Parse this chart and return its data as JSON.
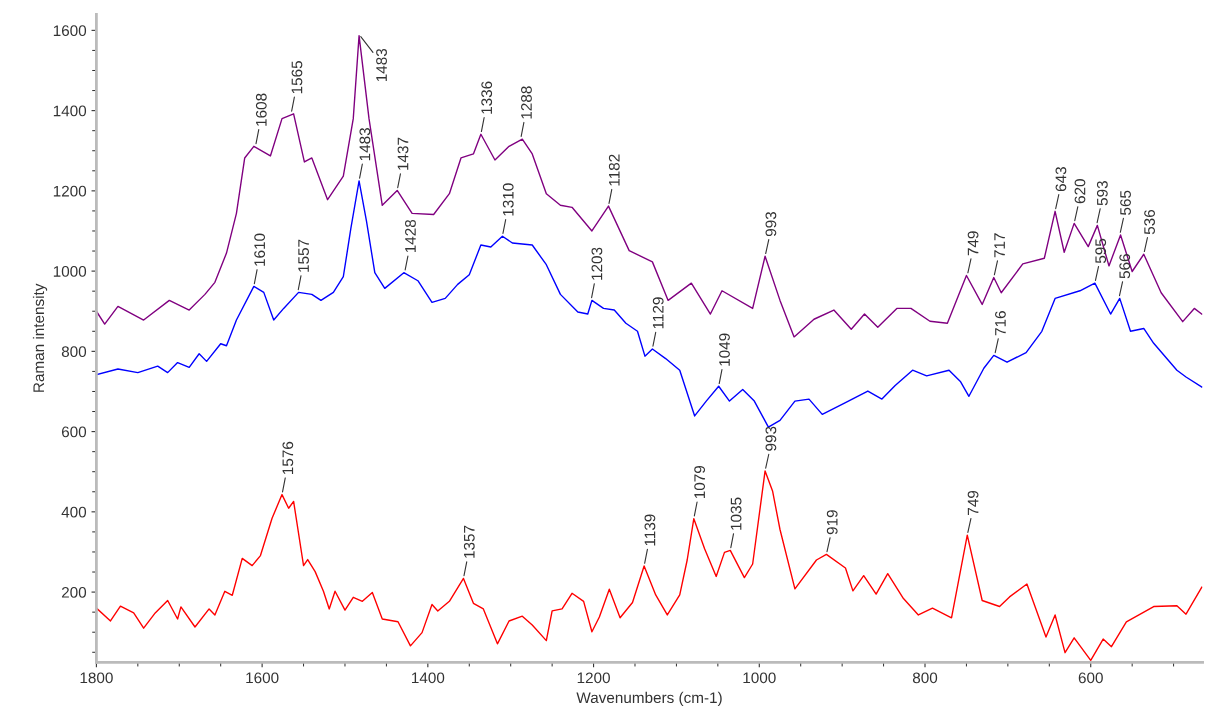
{
  "chart_data": {
    "type": "line",
    "xlabel": "Wavenumbers (cm-1)",
    "ylabel": "Raman intensity",
    "xlim": [
      1800,
      465
    ],
    "ylim": [
      25,
      1640
    ],
    "xticks": [
      1800,
      1600,
      1400,
      1200,
      1000,
      800,
      600
    ],
    "yticks": [
      200,
      400,
      600,
      800,
      1000,
      1200,
      1400,
      1600
    ],
    "grid": false,
    "legend": false,
    "line_style": "solid",
    "marker": "none",
    "series": [
      {
        "color": "#800080",
        "x": [
          1800,
          1790,
          1774,
          1743,
          1712,
          1688,
          1669,
          1657,
          1643,
          1631,
          1621,
          1610,
          1590,
          1576,
          1562,
          1549,
          1540,
          1521,
          1502,
          1490,
          1483,
          1471,
          1455,
          1437,
          1419,
          1393,
          1374,
          1360,
          1345,
          1336,
          1319,
          1302,
          1286,
          1274,
          1257,
          1240,
          1226,
          1202,
          1182,
          1157,
          1129,
          1110,
          1082,
          1059,
          1045,
          1008,
          993,
          975,
          958,
          934,
          910,
          889,
          873,
          857,
          834,
          817,
          794,
          773,
          750,
          731,
          717,
          708,
          682,
          656,
          643,
          632,
          620,
          603,
          592,
          578,
          564,
          550,
          536,
          515,
          489,
          475,
          466
        ],
        "values": [
          900,
          868,
          912,
          878,
          927,
          903,
          942,
          972,
          1045,
          1144,
          1282,
          1311,
          1287,
          1380,
          1392,
          1272,
          1282,
          1178,
          1237,
          1380,
          1587,
          1380,
          1164,
          1201,
          1144,
          1141,
          1193,
          1282,
          1292,
          1341,
          1277,
          1311,
          1329,
          1292,
          1193,
          1164,
          1159,
          1100,
          1162,
          1051,
          1023,
          927,
          970,
          893,
          951,
          907,
          1037,
          927,
          836,
          880,
          903,
          855,
          893,
          860,
          907,
          907,
          875,
          870,
          989,
          917,
          984,
          946,
          1018,
          1032,
          1149,
          1047,
          1119,
          1061,
          1114,
          1013,
          1090,
          999,
          1042,
          946,
          874,
          907,
          893
        ]
      },
      {
        "color": "#0000ff",
        "x": [
          1800,
          1774,
          1750,
          1726,
          1714,
          1702,
          1688,
          1676,
          1667,
          1650,
          1643,
          1631,
          1610,
          1598,
          1586,
          1574,
          1556,
          1540,
          1529,
          1514,
          1502,
          1493,
          1483,
          1474,
          1464,
          1452,
          1429,
          1412,
          1395,
          1379,
          1364,
          1350,
          1336,
          1324,
          1310,
          1298,
          1274,
          1257,
          1240,
          1219,
          1207,
          1202,
          1188,
          1175,
          1161,
          1147,
          1138,
          1129,
          1113,
          1096,
          1078,
          1064,
          1049,
          1036,
          1020,
          1006,
          989,
          975,
          957,
          940,
          924,
          896,
          869,
          852,
          836,
          815,
          798,
          771,
          757,
          747,
          729,
          717,
          701,
          678,
          659,
          643,
          613,
          595,
          576,
          565,
          552,
          536,
          524,
          496,
          485,
          466
        ],
        "values": [
          742,
          756,
          747,
          763,
          747,
          772,
          760,
          794,
          775,
          819,
          814,
          878,
          962,
          947,
          878,
          907,
          947,
          942,
          927,
          947,
          986,
          1105,
          1225,
          1124,
          996,
          957,
          996,
          976,
          922,
          932,
          967,
          991,
          1065,
          1060,
          1087,
          1070,
          1065,
          1016,
          942,
          898,
          893,
          927,
          907,
          903,
          870,
          850,
          788,
          806,
          782,
          753,
          639,
          676,
          713,
          676,
          705,
          676,
          611,
          628,
          676,
          681,
          643,
          672,
          701,
          681,
          715,
          753,
          739,
          753,
          724,
          688,
          758,
          790,
          773,
          797,
          850,
          932,
          951,
          970,
          893,
          932,
          850,
          857,
          820,
          753,
          736,
          711
        ]
      },
      {
        "color": "#ff0000",
        "x": [
          1800,
          1783,
          1771,
          1755,
          1743,
          1729,
          1714,
          1702,
          1698,
          1681,
          1664,
          1657,
          1645,
          1636,
          1624,
          1612,
          1602,
          1588,
          1576,
          1568,
          1562,
          1550,
          1545,
          1536,
          1526,
          1519,
          1512,
          1500,
          1490,
          1479,
          1467,
          1455,
          1436,
          1421,
          1407,
          1395,
          1388,
          1374,
          1357,
          1345,
          1333,
          1316,
          1302,
          1286,
          1274,
          1257,
          1250,
          1238,
          1226,
          1212,
          1202,
          1193,
          1181,
          1168,
          1153,
          1139,
          1125,
          1111,
          1096,
          1087,
          1079,
          1066,
          1052,
          1042,
          1035,
          1018,
          1008,
          993,
          984,
          975,
          957,
          931,
          919,
          896,
          887,
          874,
          859,
          845,
          826,
          808,
          791,
          768,
          749,
          731,
          710,
          698,
          677,
          654,
          643,
          631,
          620,
          600,
          585,
          575,
          557,
          524,
          496,
          485,
          466
        ],
        "values": [
          160,
          128,
          165,
          148,
          110,
          148,
          179,
          133,
          163,
          113,
          158,
          143,
          202,
          192,
          284,
          266,
          291,
          384,
          443,
          409,
          426,
          266,
          281,
          251,
          202,
          158,
          202,
          155,
          187,
          177,
          199,
          133,
          126,
          66,
          99,
          169,
          153,
          177,
          234,
          172,
          158,
          71,
          128,
          140,
          118,
          79,
          153,
          158,
          197,
          177,
          101,
          138,
          207,
          136,
          174,
          265,
          193,
          143,
          193,
          280,
          383,
          308,
          239,
          299,
          304,
          236,
          270,
          502,
          452,
          356,
          208,
          280,
          294,
          260,
          203,
          241,
          195,
          246,
          184,
          143,
          160,
          136,
          342,
          179,
          164,
          188,
          220,
          88,
          143,
          49,
          86,
          30,
          83,
          64,
          126,
          164,
          166,
          145,
          212
        ]
      }
    ],
    "annotations": [
      {
        "text": "1608",
        "x": 1608,
        "y": 1311
      },
      {
        "text": "1565",
        "x": 1565,
        "y": 1392
      },
      {
        "text": "1483",
        "x": 1483,
        "y": 1590
      },
      {
        "text": "1437",
        "x": 1437,
        "y": 1201
      },
      {
        "text": "1336",
        "x": 1336,
        "y": 1341
      },
      {
        "text": "1288",
        "x": 1288,
        "y": 1329
      },
      {
        "text": "1182",
        "x": 1182,
        "y": 1162
      },
      {
        "text": "993",
        "x": 993,
        "y": 1037
      },
      {
        "text": "749",
        "x": 749,
        "y": 989
      },
      {
        "text": "717",
        "x": 717,
        "y": 984
      },
      {
        "text": "643",
        "x": 643,
        "y": 1149
      },
      {
        "text": "620",
        "x": 620,
        "y": 1119
      },
      {
        "text": "593",
        "x": 593,
        "y": 1114
      },
      {
        "text": "565",
        "x": 565,
        "y": 1090
      },
      {
        "text": "536",
        "x": 536,
        "y": 1042
      },
      {
        "text": "1610",
        "x": 1610,
        "y": 962
      },
      {
        "text": "1557",
        "x": 1557,
        "y": 947
      },
      {
        "text": "1483",
        "x": 1483,
        "y": 1225
      },
      {
        "text": "1428",
        "x": 1428,
        "y": 996
      },
      {
        "text": "1310",
        "x": 1310,
        "y": 1087
      },
      {
        "text": "1203",
        "x": 1203,
        "y": 927
      },
      {
        "text": "1129",
        "x": 1129,
        "y": 806
      },
      {
        "text": "1049",
        "x": 1049,
        "y": 713
      },
      {
        "text": "716",
        "x": 716,
        "y": 790
      },
      {
        "text": "595",
        "x": 595,
        "y": 970
      },
      {
        "text": "566",
        "x": 566,
        "y": 932
      },
      {
        "text": "1576",
        "x": 1576,
        "y": 443
      },
      {
        "text": "1357",
        "x": 1357,
        "y": 234
      },
      {
        "text": "1139",
        "x": 1139,
        "y": 265
      },
      {
        "text": "1079",
        "x": 1079,
        "y": 383
      },
      {
        "text": "1035",
        "x": 1035,
        "y": 304
      },
      {
        "text": "993",
        "x": 993,
        "y": 502
      },
      {
        "text": "919",
        "x": 919,
        "y": 294
      },
      {
        "text": "749",
        "x": 749,
        "y": 342
      }
    ]
  }
}
